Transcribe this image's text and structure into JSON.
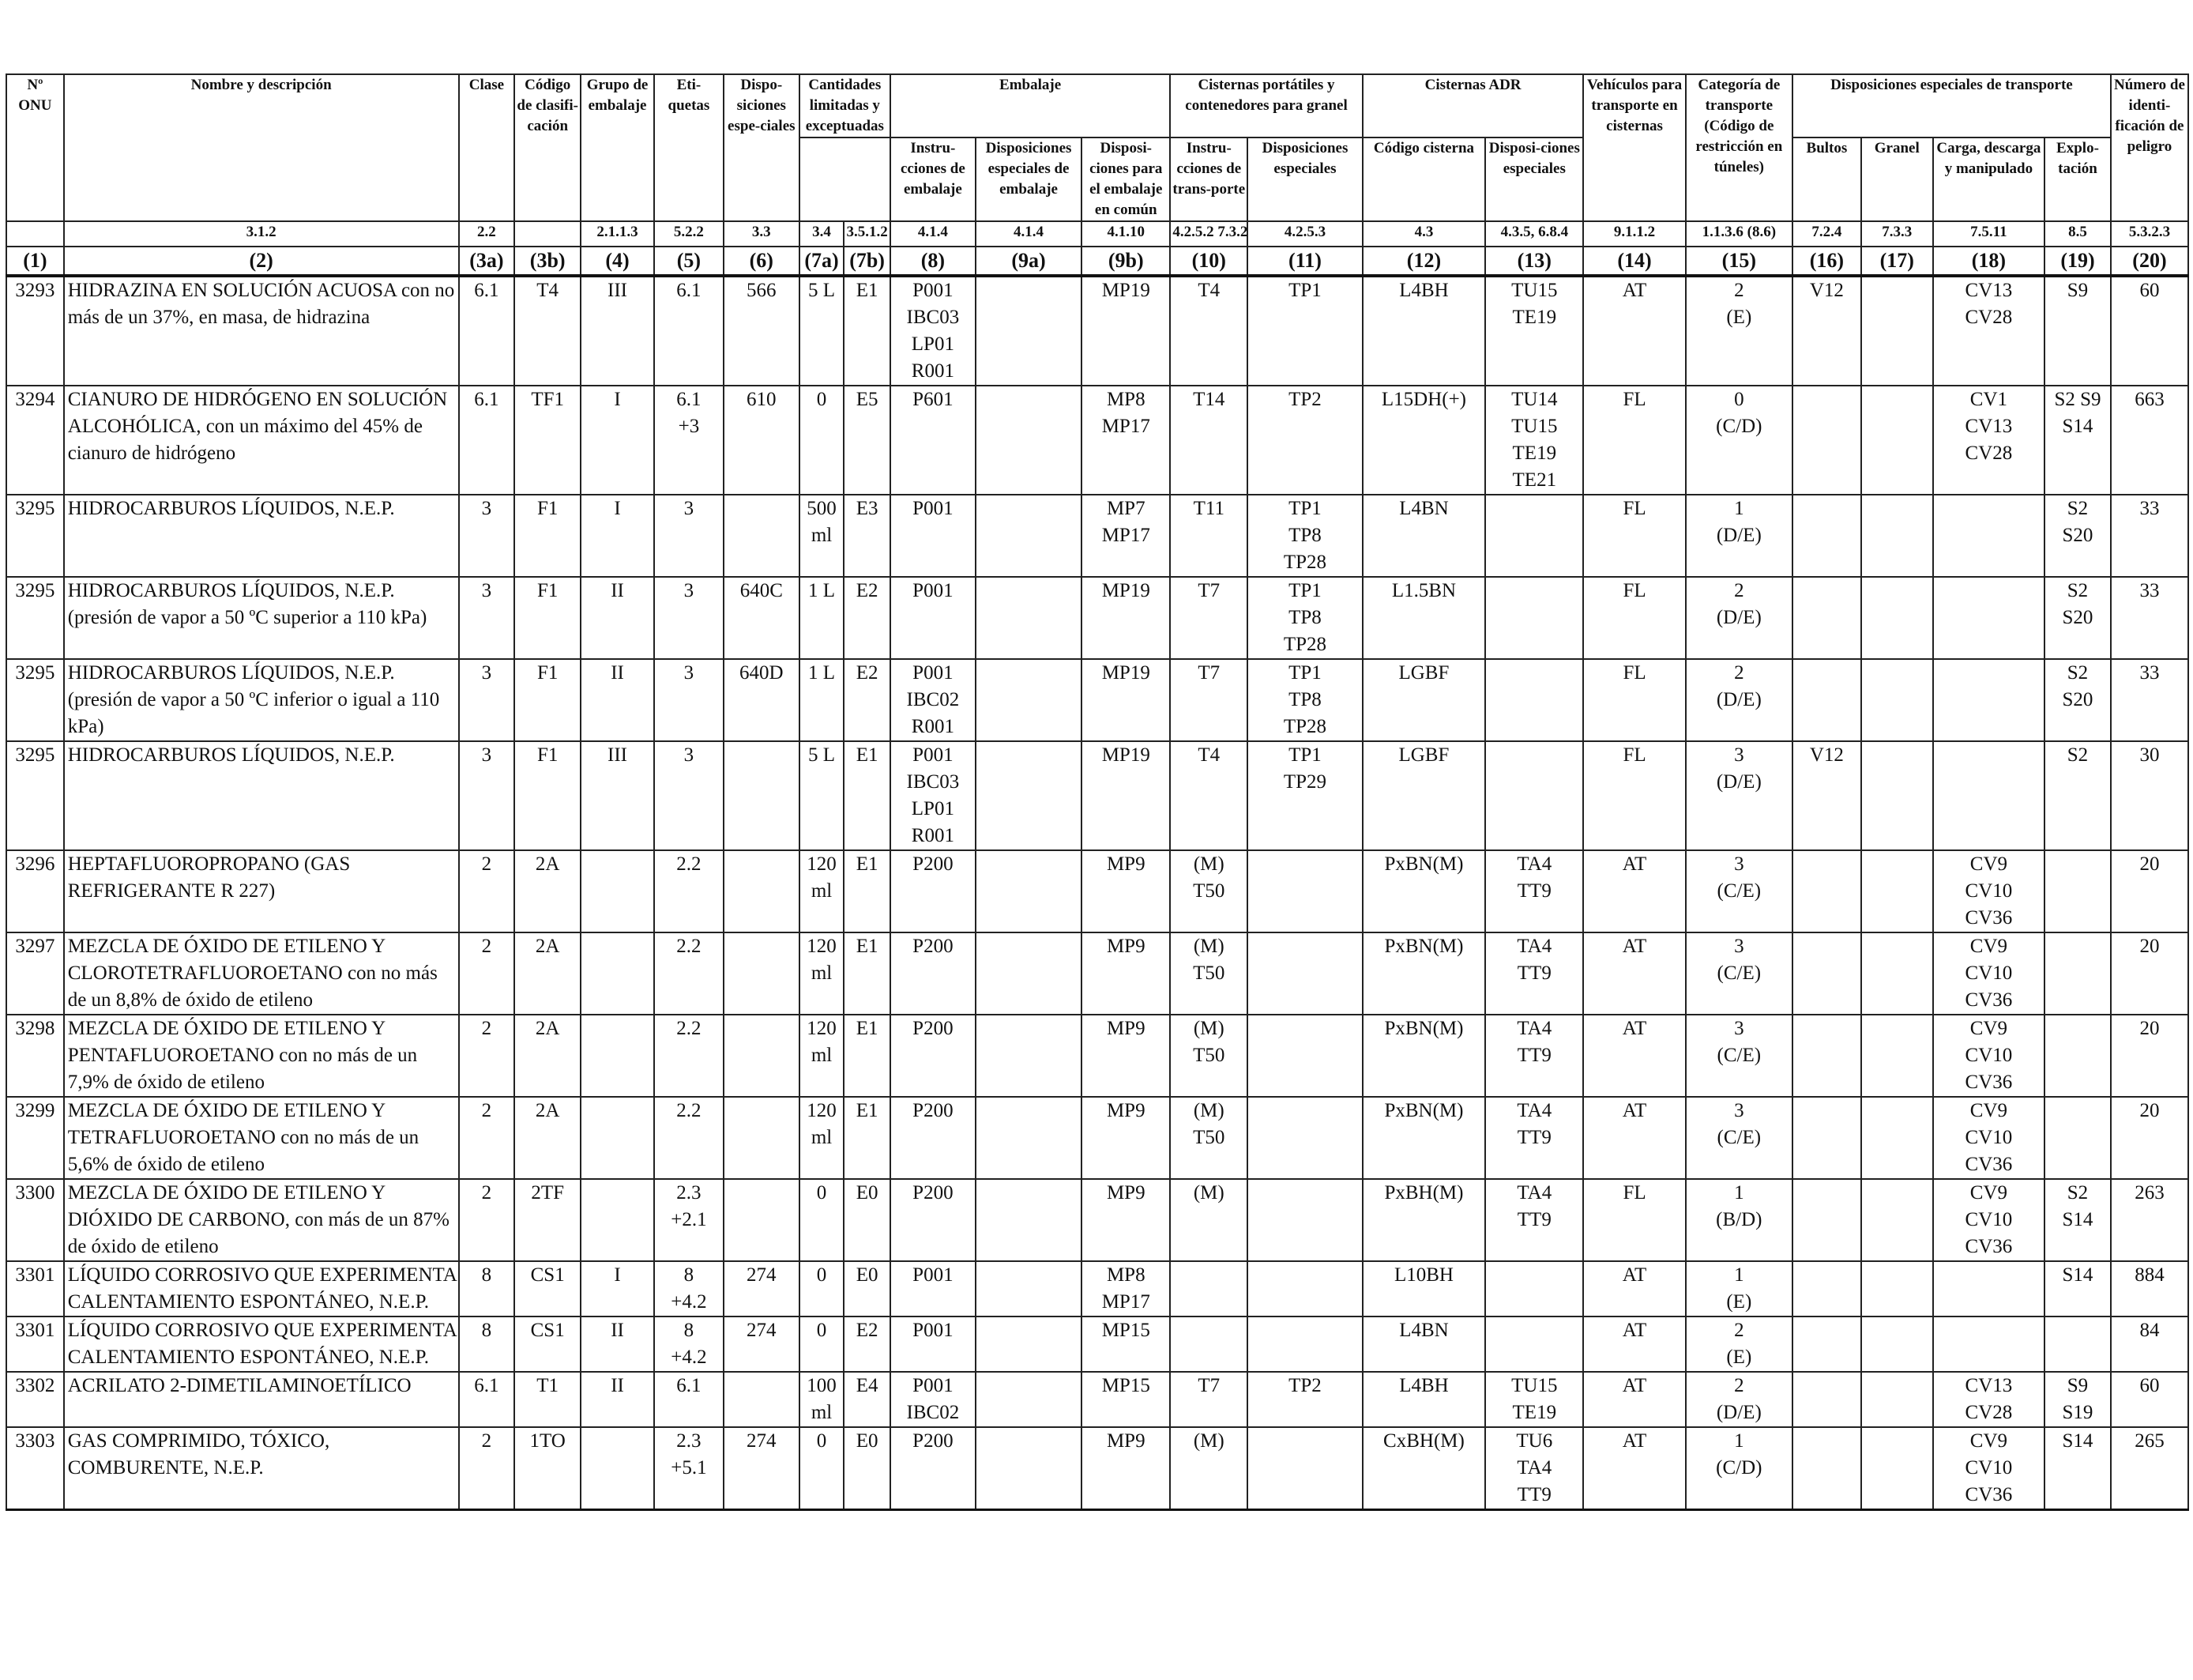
{
  "header": {
    "top": [
      {
        "key": "c1",
        "label": "Nº ONU"
      },
      {
        "key": "c2",
        "label": "Nombre y descripción"
      },
      {
        "key": "c3a",
        "label": "Clase"
      },
      {
        "key": "c3b",
        "label": "Código de clasifi-cación"
      },
      {
        "key": "c4",
        "label": "Grupo de embalaje"
      },
      {
        "key": "c5",
        "label": "Eti-quetas"
      },
      {
        "key": "c6",
        "label": "Dispo-siciones espe-ciales"
      },
      {
        "key": "g7",
        "label": "Cantidades limitadas y exceptuadas"
      },
      {
        "key": "g8",
        "label": "Embalaje"
      },
      {
        "key": "g10",
        "label": "Cisternas portátiles y contenedores para granel"
      },
      {
        "key": "g12",
        "label": "Cisternas ADR"
      },
      {
        "key": "c14",
        "label": "Vehículos para transporte en cisternas"
      },
      {
        "key": "c15",
        "label": "Categoría de transporte (Código de restricción en túneles)"
      },
      {
        "key": "g16",
        "label": "Disposiciones especiales de transporte"
      },
      {
        "key": "c20",
        "label": "Número de identi-ficación de peligro"
      }
    ],
    "sub": {
      "c8": "Instru-cciones de embalaje",
      "c9a": "Disposiciones especiales de embalaje",
      "c9b": "Disposi-ciones para el embalaje en común",
      "c10": "Instru-cciones de trans-porte",
      "c11": "Disposiciones especiales",
      "c12": "Código cisterna",
      "c13": "Disposi-ciones especiales",
      "c16": "Bultos",
      "c17": "Granel",
      "c18": "Carga, descarga y manipulado",
      "c19": "Explo-tación"
    },
    "refs": [
      "",
      "3.1.2",
      "2.2",
      "",
      "2.1.1.3",
      "5.2.2",
      "3.3",
      "3.4",
      "3.5.1.2",
      "4.1.4",
      "4.1.4",
      "4.1.10",
      "4.2.5.2 7.3.2",
      "4.2.5.3",
      "4.3",
      "4.3.5, 6.8.4",
      "9.1.1.2",
      "1.1.3.6 (8.6)",
      "7.2.4",
      "7.3.3",
      "7.5.11",
      "8.5",
      "5.3.2.3"
    ],
    "nums": [
      "(1)",
      "(2)",
      "(3a)",
      "(3b)",
      "(4)",
      "(5)",
      "(6)",
      "(7a)",
      "(7b)",
      "(8)",
      "(9a)",
      "(9b)",
      "(10)",
      "(11)",
      "(12)",
      "(13)",
      "(14)",
      "(15)",
      "(16)",
      "(17)",
      "(18)",
      "(19)",
      "(20)"
    ]
  },
  "rows": [
    [
      "3293",
      "HIDRAZINA EN SOLUCIÓN ACUOSA con no más de un 37%, en masa, de hidrazina",
      "6.1",
      "T4",
      "III",
      "6.1",
      "566",
      "5 L",
      "E1",
      "P001\nIBC03\nLP01\nR001",
      "",
      "MP19",
      "T4",
      "TP1",
      "L4BH",
      "TU15\nTE19",
      "AT",
      "2\n(E)",
      "V12",
      "",
      "CV13\nCV28",
      "S9",
      "60"
    ],
    [
      "3294",
      "CIANURO DE HIDRÓGENO EN SOLUCIÓN ALCOHÓLICA, con un máximo del 45% de cianuro de hidrógeno",
      "6.1",
      "TF1",
      "I",
      "6.1\n+3",
      "610",
      "0",
      "E5",
      "P601",
      "",
      "MP8\nMP17",
      "T14",
      "TP2",
      "L15DH(+)",
      "TU14\nTU15\nTE19\nTE21",
      "FL",
      "0\n(C/D)",
      "",
      "",
      "CV1\nCV13\nCV28",
      "S2 S9\nS14",
      "663"
    ],
    [
      "3295",
      "HIDROCARBUROS LÍQUIDOS, N.E.P.",
      "3",
      "F1",
      "I",
      "3",
      "",
      "500\nml",
      "E3",
      "P001",
      "",
      "MP7\nMP17",
      "T11",
      "TP1\nTP8\nTP28",
      "L4BN",
      "",
      "FL",
      "1\n(D/E)",
      "",
      "",
      "",
      "S2\nS20",
      "33"
    ],
    [
      "3295",
      "HIDROCARBUROS LÍQUIDOS, N.E.P.(presión de vapor a 50 ºC superior a 110 kPa)",
      "3",
      "F1",
      "II",
      "3",
      "640C",
      "1 L",
      "E2",
      "P001",
      "",
      "MP19",
      "T7",
      "TP1\nTP8\nTP28",
      "L1.5BN",
      "",
      "FL",
      "2\n(D/E)",
      "",
      "",
      "",
      "S2\nS20",
      "33"
    ],
    [
      "3295",
      "HIDROCARBUROS LÍQUIDOS, N.E.P. (presión de vapor a 50 ºC inferior o igual a 110 kPa)",
      "3",
      "F1",
      "II",
      "3",
      "640D",
      "1 L",
      "E2",
      "P001\nIBC02\nR001",
      "",
      "MP19",
      "T7",
      "TP1\nTP8\nTP28",
      "LGBF",
      "",
      "FL",
      "2\n(D/E)",
      "",
      "",
      "",
      "S2\nS20",
      "33"
    ],
    [
      "3295",
      "HIDROCARBUROS LÍQUIDOS, N.E.P.",
      "3",
      "F1",
      "III",
      "3",
      "",
      "5 L",
      "E1",
      "P001\nIBC03\nLP01\nR001",
      "",
      "MP19",
      "T4",
      "TP1\nTP29",
      "LGBF",
      "",
      "FL",
      "3\n(D/E)",
      "V12",
      "",
      "",
      "S2",
      "30"
    ],
    [
      "3296",
      "HEPTAFLUOROPROPANO (GAS REFRIGERANTE R 227)",
      "2",
      "2A",
      "",
      "2.2",
      "",
      "120\nml",
      "E1",
      "P200",
      "",
      "MP9",
      "(M)\nT50",
      "",
      "PxBN(M)",
      "TA4\nTT9",
      "AT",
      "3\n(C/E)",
      "",
      "",
      "CV9\nCV10\nCV36",
      "",
      "20"
    ],
    [
      "3297",
      "MEZCLA DE ÓXIDO DE ETILENO Y CLOROTETRAFLUOROETANO con no más de un 8,8% de óxido de etileno",
      "2",
      "2A",
      "",
      "2.2",
      "",
      "120\nml",
      "E1",
      "P200",
      "",
      "MP9",
      "(M)\nT50",
      "",
      "PxBN(M)",
      "TA4\nTT9",
      "AT",
      "3\n(C/E)",
      "",
      "",
      "CV9\nCV10\nCV36",
      "",
      "20"
    ],
    [
      "3298",
      "MEZCLA DE ÓXIDO DE ETILENO Y PENTAFLUOROETANO con no más de un 7,9% de óxido de etileno",
      "2",
      "2A",
      "",
      "2.2",
      "",
      "120\nml",
      "E1",
      "P200",
      "",
      "MP9",
      "(M)\nT50",
      "",
      "PxBN(M)",
      "TA4\nTT9",
      "AT",
      "3\n(C/E)",
      "",
      "",
      "CV9\nCV10\nCV36",
      "",
      "20"
    ],
    [
      "3299",
      "MEZCLA DE ÓXIDO DE ETILENO Y TETRAFLUOROETANO con no más de un 5,6% de óxido de etileno",
      "2",
      "2A",
      "",
      "2.2",
      "",
      "120\nml",
      "E1",
      "P200",
      "",
      "MP9",
      "(M)\nT50",
      "",
      "PxBN(M)",
      "TA4\nTT9",
      "AT",
      "3\n(C/E)",
      "",
      "",
      "CV9\nCV10\nCV36",
      "",
      "20"
    ],
    [
      "3300",
      "MEZCLA DE ÓXIDO DE ETILENO Y DIÓXIDO DE CARBONO, con más de un 87% de óxido de etileno",
      "2",
      "2TF",
      "",
      "2.3\n+2.1",
      "",
      "0",
      "E0",
      "P200",
      "",
      "MP9",
      "(M)",
      "",
      "PxBH(M)",
      "TA4\nTT9",
      "FL",
      "1\n(B/D)",
      "",
      "",
      "CV9\nCV10\nCV36",
      "S2\nS14",
      "263"
    ],
    [
      "3301",
      "LÍQUIDO CORROSIVO QUE EXPERIMENTA CALENTAMIENTO ESPONTÁNEO, N.E.P.",
      "8",
      "CS1",
      "I",
      "8\n+4.2",
      "274",
      "0",
      "E0",
      "P001",
      "",
      "MP8\nMP17",
      "",
      "",
      "L10BH",
      "",
      "AT",
      "1\n(E)",
      "",
      "",
      "",
      "S14",
      "884"
    ],
    [
      "3301",
      "LÍQUIDO CORROSIVO QUE EXPERIMENTA CALENTAMIENTO ESPONTÁNEO, N.E.P.",
      "8",
      "CS1",
      "II",
      "8\n+4.2",
      "274",
      "0",
      "E2",
      "P001",
      "",
      "MP15",
      "",
      "",
      "L4BN",
      "",
      "AT",
      "2\n(E)",
      "",
      "",
      "",
      "",
      "84"
    ],
    [
      "3302",
      "ACRILATO 2-DIMETILAMINOETÍLICO",
      "6.1",
      "T1",
      "II",
      "6.1",
      "",
      "100\nml",
      "E4",
      "P001\nIBC02",
      "",
      "MP15",
      "T7",
      "TP2",
      "L4BH",
      "TU15\nTE19",
      "AT",
      "2\n(D/E)",
      "",
      "",
      "CV13\nCV28",
      "S9\nS19",
      "60"
    ],
    [
      "3303",
      "GAS COMPRIMIDO, TÓXICO, COMBURENTE, N.E.P.",
      "2",
      "1TO",
      "",
      "2.3\n+5.1",
      "274",
      "0",
      "E0",
      "P200",
      "",
      "MP9",
      "(M)",
      "",
      "CxBH(M)",
      "TU6\nTA4\nTT9",
      "AT",
      "1\n(C/D)",
      "",
      "",
      "CV9\nCV10\nCV36",
      "S14",
      "265"
    ]
  ]
}
